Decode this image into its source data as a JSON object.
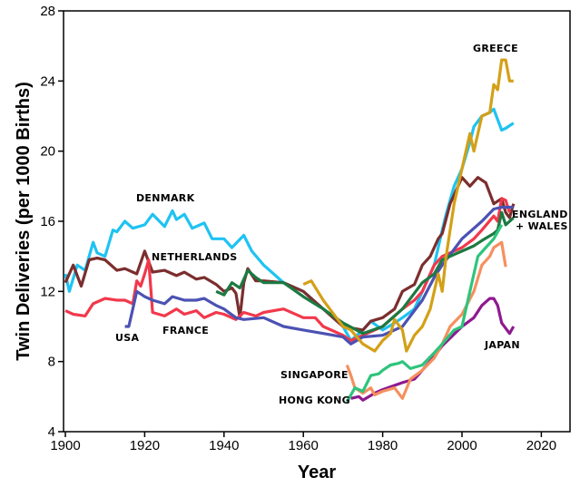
{
  "chart_data": {
    "type": "line",
    "title": "",
    "xlabel": "Year",
    "ylabel": "Twin Deliveries (per 1000 Births)",
    "xlim": [
      1900,
      2028
    ],
    "ylim": [
      4,
      28
    ],
    "xticks": [
      1900,
      1920,
      1940,
      1960,
      1980,
      2000,
      2020
    ],
    "yticks": [
      4,
      8,
      12,
      16,
      20,
      24,
      28
    ],
    "grid": false,
    "legend": "inline labels",
    "series": [
      {
        "name": "DENMARK",
        "color": "#1ec3f2",
        "x": [
          1900,
          1901,
          1903,
          1905,
          1907,
          1908,
          1910,
          1912,
          1913,
          1915,
          1917,
          1920,
          1922,
          1925,
          1927,
          1928,
          1930,
          1932,
          1935,
          1937,
          1940,
          1942,
          1945,
          1947,
          1950,
          1955,
          1960,
          1965,
          1968,
          1970,
          1972,
          1975,
          1977,
          1980,
          1983,
          1985,
          1988,
          1990,
          1993,
          1995,
          1996,
          1998,
          2000,
          2002,
          2003,
          2005,
          2007,
          2008,
          2009,
          2010,
          2011,
          2013
        ],
        "y": [
          13,
          12,
          13.5,
          13.2,
          14.8,
          14.2,
          14,
          15.5,
          15.4,
          16,
          15.6,
          15.8,
          16.4,
          15.7,
          16.6,
          16.1,
          16.4,
          15.6,
          15.9,
          15,
          15,
          14.5,
          15.2,
          14.3,
          13.5,
          12.5,
          12,
          11,
          10.5,
          10,
          9.2,
          9.8,
          10.3,
          9.8,
          10.2,
          10.5,
          11,
          12,
          13.5,
          15.5,
          16.4,
          18,
          19,
          20.5,
          21.4,
          22,
          22.2,
          22.4,
          21.8,
          21.2,
          21.3,
          21.6
        ]
      },
      {
        "name": "NETHERLANDS",
        "color": "#7b2e2e",
        "x": [
          1900,
          1902,
          1904,
          1906,
          1908,
          1910,
          1913,
          1915,
          1918,
          1920,
          1922,
          1925,
          1928,
          1930,
          1933,
          1935,
          1938,
          1940,
          1942,
          1943,
          1944,
          1945,
          1946,
          1948,
          1950,
          1955,
          1960,
          1965,
          1970,
          1975,
          1977,
          1980,
          1983,
          1985,
          1988,
          1990,
          1992,
          1994,
          1995,
          1997,
          1998,
          2000,
          2002,
          2004,
          2006,
          2008,
          2010,
          2011,
          2012,
          2013
        ],
        "y": [
          12.5,
          13.5,
          12.3,
          13.8,
          13.9,
          13.8,
          13.2,
          13.3,
          13,
          14.3,
          13.1,
          13.2,
          12.9,
          13.1,
          12.7,
          12.8,
          12.4,
          12,
          12.2,
          11.9,
          10.5,
          12.5,
          13.3,
          12.6,
          12.6,
          12.5,
          12,
          11,
          10,
          9.8,
          10.3,
          10.5,
          11,
          12,
          12.4,
          13.5,
          14,
          15,
          15.3,
          17,
          17.5,
          18.5,
          18,
          18.5,
          18.2,
          17,
          17.3,
          16.5,
          16.2,
          17
        ]
      },
      {
        "name": "FRANCE",
        "color": "#f2384b",
        "x": [
          1900,
          1902,
          1905,
          1907,
          1910,
          1913,
          1915,
          1917,
          1918,
          1919,
          1920,
          1921,
          1922,
          1925,
          1928,
          1930,
          1933,
          1935,
          1938,
          1940,
          1943,
          1945,
          1948,
          1950,
          1955,
          1960,
          1963,
          1965,
          1970,
          1972,
          1975,
          1980,
          1985,
          1988,
          1990,
          1993,
          1995,
          2000,
          2003,
          2005,
          2008,
          2009,
          2010,
          2011,
          2012
        ],
        "y": [
          10.9,
          10.7,
          10.6,
          11.3,
          11.6,
          11.5,
          11.5,
          11.3,
          12.6,
          12.3,
          13,
          13.8,
          10.8,
          10.6,
          11,
          10.7,
          10.9,
          10.5,
          10.8,
          10.7,
          10.4,
          10.8,
          10.6,
          10.8,
          11,
          10.5,
          10.5,
          10,
          9.5,
          9.2,
          9.5,
          10,
          11,
          11.5,
          12,
          13.5,
          14,
          14.5,
          15,
          15.5,
          16.3,
          16,
          17.3,
          17.2,
          16.5
        ]
      },
      {
        "name": "USA",
        "color": "#4b52b3",
        "x": [
          1915,
          1916,
          1918,
          1920,
          1922,
          1925,
          1927,
          1930,
          1933,
          1935,
          1938,
          1940,
          1943,
          1945,
          1950,
          1955,
          1960,
          1965,
          1970,
          1972,
          1975,
          1980,
          1985,
          1990,
          1993,
          1995,
          2000,
          2005,
          2008,
          2010,
          2013
        ],
        "y": [
          10,
          10,
          12,
          11.7,
          11.5,
          11.3,
          11.7,
          11.5,
          11.5,
          11.6,
          11.2,
          11,
          10.5,
          10.4,
          10.5,
          10,
          9.8,
          9.6,
          9.4,
          9,
          9.4,
          9.5,
          10,
          11.5,
          12.8,
          13.5,
          15,
          16,
          16.7,
          16.8,
          16.8
        ]
      },
      {
        "name": "ENGLAND + WALES",
        "color": "#1b7a42",
        "x": [
          1938,
          1940,
          1942,
          1944,
          1946,
          1948,
          1950,
          1955,
          1960,
          1965,
          1970,
          1975,
          1980,
          1985,
          1990,
          1993,
          1995,
          1998,
          2000,
          2003,
          2005,
          2008,
          2009,
          2010,
          2011,
          2013
        ],
        "y": [
          12,
          11.8,
          12.5,
          12.2,
          13.2,
          12.8,
          12.5,
          12.5,
          11.7,
          11,
          10.2,
          9.6,
          10,
          11,
          12.5,
          13,
          13.8,
          14.1,
          14.3,
          14.6,
          14.9,
          15.3,
          15.5,
          16.5,
          15.8,
          16.2
        ]
      },
      {
        "name": "GREECE",
        "color": "#d4a017",
        "x": [
          1960,
          1962,
          1965,
          1968,
          1970,
          1972,
          1975,
          1978,
          1980,
          1982,
          1983,
          1985,
          1986,
          1988,
          1990,
          1992,
          1994,
          1995,
          1996,
          1998,
          2000,
          2002,
          2003,
          2005,
          2007,
          2008,
          2009,
          2010,
          2011,
          2012,
          2013
        ],
        "y": [
          12.4,
          12.6,
          11.5,
          10.6,
          10,
          9.8,
          9,
          8.6,
          9.2,
          9.6,
          10.4,
          9.8,
          8.6,
          9.5,
          10,
          11,
          13,
          12,
          14,
          17,
          19,
          21,
          20,
          22,
          22.2,
          23.8,
          23.5,
          25.2,
          25.2,
          24,
          24
        ]
      },
      {
        "name": "JAPAN",
        "color": "#8e1a8e",
        "x": [
          1972,
          1974,
          1975,
          1978,
          1980,
          1985,
          1988,
          1990,
          1993,
          1995,
          2000,
          2003,
          2005,
          2007,
          2008,
          2009,
          2010,
          2012,
          2013
        ],
        "y": [
          5.9,
          6,
          5.8,
          6.2,
          6.4,
          6.8,
          7,
          7.5,
          8.3,
          8.9,
          10,
          10.5,
          11.2,
          11.6,
          11.6,
          11.2,
          10.2,
          9.6,
          10
        ]
      },
      {
        "name": "SINGAPORE",
        "color": "#f5905e",
        "x": [
          1971,
          1972,
          1973,
          1975,
          1977,
          1978,
          1980,
          1983,
          1985,
          1987,
          1990,
          1993,
          1995,
          1997,
          2000,
          2003,
          2005,
          2007,
          2008,
          2010,
          2011
        ],
        "y": [
          7.8,
          7.2,
          6.5,
          6.2,
          6.5,
          6.1,
          6.3,
          6.5,
          5.9,
          7,
          7.5,
          8.2,
          9,
          10,
          10.7,
          12,
          13.5,
          14,
          14.5,
          14.8,
          13.4
        ]
      },
      {
        "name": "HONG KONG",
        "color": "#2ec47c",
        "x": [
          1971,
          1973,
          1975,
          1977,
          1979,
          1980,
          1982,
          1984,
          1985,
          1987,
          1990,
          1993,
          1995,
          1998,
          2000,
          2002,
          2004,
          2006,
          2008,
          2010
        ],
        "y": [
          5.7,
          6.5,
          6.3,
          7.2,
          7.3,
          7.5,
          7.8,
          7.9,
          8,
          7.6,
          7.8,
          8.5,
          9,
          9.8,
          10,
          12,
          14,
          14.5,
          15,
          15.8
        ]
      }
    ]
  }
}
